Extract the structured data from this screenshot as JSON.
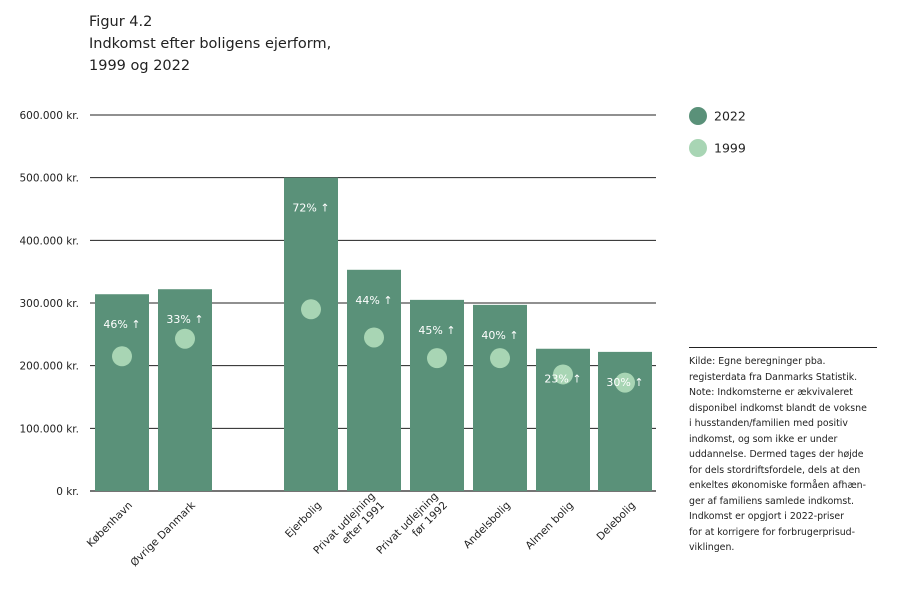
{
  "figure": {
    "label": "Figur 4.2",
    "title_line1": "Indkomst efter boligens ejerform,",
    "title_line2": "1999 og 2022"
  },
  "colors": {
    "bar_2022": "#5a9179",
    "dot_1999": "#a8d5b4",
    "grid": "#222222",
    "text": "#222222"
  },
  "chart_data": {
    "type": "bar",
    "title": "Indkomst efter boligens ejerform, 1999 og 2022",
    "xlabel": "",
    "ylabel": "",
    "ylim": [
      0,
      600000
    ],
    "yticks": [
      0,
      100000,
      200000,
      300000,
      400000,
      500000,
      600000
    ],
    "ytick_labels": [
      "0 kr.",
      "100.000 kr.",
      "200.000 kr.",
      "300.000 kr.",
      "400.000 kr.",
      "500.000 kr.",
      "600.000 kr."
    ],
    "grid": true,
    "legend_position": "top-right",
    "categories": [
      "København",
      "Øvrige Danmark",
      "Ejerbolig",
      "Privat udlejning efter 1991",
      "Privat udlejning før 1992",
      "Andelsbolig",
      "Almen bolig",
      "Delebolig"
    ],
    "category_label_lines": [
      [
        "København"
      ],
      [
        "Øvrige Danmark"
      ],
      [
        "Ejerbolig"
      ],
      [
        "Privat udlejning",
        "efter 1991"
      ],
      [
        "Privat udlejning",
        "før 1992"
      ],
      [
        "Andelsbolig"
      ],
      [
        "Almen bolig"
      ],
      [
        "Delebolig"
      ]
    ],
    "series": [
      {
        "name": "2022",
        "style": "bar",
        "values": [
          314000,
          322000,
          500000,
          353000,
          305000,
          297000,
          227000,
          222000
        ]
      },
      {
        "name": "1999",
        "style": "dot",
        "values": [
          215000,
          243000,
          290000,
          245000,
          212000,
          212000,
          186000,
          173000
        ]
      }
    ],
    "annotations": [
      "46% ↑",
      "33% ↑",
      "72% ↑",
      "44% ↑",
      "45% ↑",
      "40% ↑",
      "23% ↑",
      "30% ↑"
    ]
  },
  "legend": [
    {
      "label": "2022",
      "color": "#5a9179"
    },
    {
      "label": "1999",
      "color": "#a8d5b4"
    }
  ],
  "note_lines": [
    "Kilde: Egne beregninger pba.",
    "registerdata fra Danmarks Statistik.",
    "Note: Indkomsterne er ækvivaleret",
    "disponibel indkomst blandt de voksne",
    "i husstanden/familien med positiv",
    "indkomst, og som ikke er under",
    "uddannelse. Dermed tages der højde",
    "for dels stordriftsfordele, dels at den",
    "enkeltes økonomiske formåen afhæn-",
    "ger af familiens samlede indkomst.",
    "Indkomst er opgjort i 2022-priser",
    "for at korrigere for forbrugerprisud-",
    "viklingen."
  ]
}
